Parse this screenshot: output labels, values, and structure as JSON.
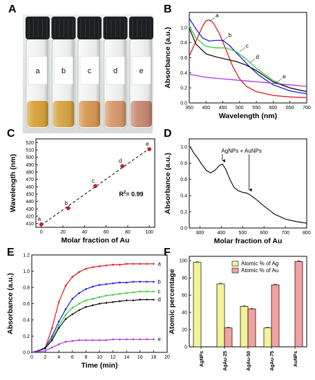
{
  "colors": {
    "red": "#e8141c",
    "blue": "#1a1aeb",
    "green": "#33cc33",
    "black": "#111111",
    "violet": "#b52ee0",
    "ag_bar": "#f4f39a",
    "au_bar": "#f2a0a0"
  },
  "panels": {
    "A": "A",
    "B": "B",
    "C": "C",
    "D": "D",
    "E": "E",
    "F": "F"
  },
  "photo": {
    "vials": [
      {
        "label": "a",
        "liquid": "#d9a43a"
      },
      {
        "label": "b",
        "liquid": "#d7a446"
      },
      {
        "label": "c",
        "liquid": "#d59a52"
      },
      {
        "label": "d",
        "liquid": "#d79a6c"
      },
      {
        "label": "e",
        "liquid": "#c88a74"
      }
    ]
  },
  "chart_data": [
    {
      "panel": "B",
      "type": "line",
      "xlabel": "Wavelength (nm)",
      "ylabel": "Absorbance (a.u.)",
      "xlim": [
        350,
        700
      ],
      "ylim": [
        0,
        1.2
      ],
      "xticks": [
        350,
        400,
        450,
        500,
        550,
        600,
        650,
        700
      ],
      "yticks": [
        0.0,
        0.2,
        0.4,
        0.6,
        0.8,
        1.0
      ],
      "series": [
        {
          "name": "a",
          "color": "#e8141c",
          "x": [
            350,
            370,
            390,
            400,
            410,
            420,
            440,
            460,
            480,
            500,
            520,
            550,
            600,
            650,
            700
          ],
          "y": [
            0.62,
            0.82,
            1.02,
            1.09,
            1.1,
            1.07,
            0.92,
            0.7,
            0.48,
            0.32,
            0.22,
            0.15,
            0.1,
            0.08,
            0.07
          ]
        },
        {
          "name": "b",
          "color": "#1a1aeb",
          "x": [
            350,
            370,
            390,
            410,
            430,
            450,
            470,
            500,
            530,
            560,
            600,
            650,
            700
          ],
          "y": [
            1.12,
            0.98,
            0.86,
            0.82,
            0.83,
            0.83,
            0.76,
            0.62,
            0.48,
            0.36,
            0.24,
            0.16,
            0.12
          ]
        },
        {
          "name": "c",
          "color": "#33cc33",
          "x": [
            350,
            370,
            400,
            430,
            460,
            490,
            520,
            550,
            600,
            650,
            700
          ],
          "y": [
            1.02,
            0.86,
            0.75,
            0.73,
            0.73,
            0.68,
            0.58,
            0.46,
            0.3,
            0.2,
            0.15
          ]
        },
        {
          "name": "d",
          "color": "#111111",
          "x": [
            350,
            370,
            400,
            430,
            460,
            490,
            520,
            550,
            580,
            600,
            650,
            700
          ],
          "y": [
            0.99,
            0.78,
            0.65,
            0.61,
            0.58,
            0.55,
            0.5,
            0.43,
            0.34,
            0.28,
            0.2,
            0.15
          ]
        },
        {
          "name": "e",
          "color": "#b52ee0",
          "x": [
            350,
            400,
            450,
            500,
            550,
            600,
            650,
            700
          ],
          "y": [
            0.38,
            0.34,
            0.32,
            0.3,
            0.28,
            0.26,
            0.24,
            0.22
          ]
        }
      ],
      "annotations": [
        "a",
        "b",
        "c",
        "d",
        "e"
      ]
    },
    {
      "panel": "C",
      "type": "scatter",
      "xlabel": "Molar fraction of Au",
      "ylabel": "Wavelength (nm)",
      "xlim": [
        -5,
        105
      ],
      "ylim": [
        405,
        525
      ],
      "xticks": [
        0,
        20,
        40,
        60,
        80,
        100
      ],
      "yticks": [
        410,
        420,
        430,
        440,
        450,
        460,
        470,
        480,
        490,
        500,
        510,
        520
      ],
      "points": [
        {
          "label": "a",
          "x": 0,
          "y": 409
        },
        {
          "label": "b",
          "x": 25,
          "y": 431
        },
        {
          "label": "c",
          "x": 50,
          "y": 461
        },
        {
          "label": "d",
          "x": 75,
          "y": 488
        },
        {
          "label": "e",
          "x": 100,
          "y": 511
        }
      ],
      "fit": {
        "x": [
          0,
          100
        ],
        "y": [
          408,
          512
        ]
      },
      "r2": "R",
      "r2_sup": "2",
      "r2_val": "= 0.99"
    },
    {
      "panel": "D",
      "type": "line",
      "xlabel": "Molar fraction of Au",
      "ylabel": "Absorbance (a.u.)",
      "xlim": [
        250,
        800
      ],
      "ylim": [
        0,
        1.1
      ],
      "xticks": [
        300,
        400,
        500,
        600,
        700,
        800
      ],
      "yticks": [
        0.0,
        0.2,
        0.4,
        0.6,
        0.8,
        1.0
      ],
      "series": [
        {
          "name": "",
          "color": "#111111",
          "x": [
            255,
            270,
            290,
            310,
            330,
            350,
            370,
            390,
            405,
            420,
            440,
            460,
            480,
            500,
            520,
            540,
            560,
            600,
            650,
            700,
            750,
            800
          ],
          "y": [
            1.0,
            0.93,
            0.86,
            0.78,
            0.71,
            0.68,
            0.71,
            0.77,
            0.79,
            0.73,
            0.6,
            0.5,
            0.46,
            0.44,
            0.43,
            0.4,
            0.36,
            0.27,
            0.17,
            0.11,
            0.08,
            0.06
          ]
        }
      ],
      "annotation": "AgNPs + AuNPs",
      "arrows_x": [
        405,
        530
      ]
    },
    {
      "panel": "E",
      "type": "line",
      "xlabel": "Time (min)",
      "ylabel": "Absorbance (a.u.)",
      "xlim": [
        0,
        20
      ],
      "ylim": [
        0,
        1.2
      ],
      "xticks": [
        0,
        2,
        4,
        6,
        8,
        10,
        12,
        14,
        16,
        18,
        20
      ],
      "yticks": [
        0.0,
        0.2,
        0.4,
        0.6,
        0.8,
        1.0,
        1.2
      ],
      "series": [
        {
          "name": "a",
          "color": "#e8141c",
          "x": [
            0,
            1,
            2,
            3,
            4,
            5,
            6,
            7,
            8,
            9,
            10,
            11,
            12,
            13,
            14,
            15,
            16,
            17,
            18
          ],
          "y": [
            0,
            0.02,
            0.06,
            0.3,
            0.62,
            0.82,
            0.93,
            0.99,
            1.03,
            1.05,
            1.06,
            1.07,
            1.08,
            1.08,
            1.09,
            1.09,
            1.09,
            1.09,
            1.09
          ]
        },
        {
          "name": "b",
          "color": "#1a1aeb",
          "x": [
            0,
            1,
            2,
            3,
            4,
            5,
            6,
            7,
            8,
            9,
            10,
            11,
            12,
            13,
            14,
            15,
            16,
            17,
            18
          ],
          "y": [
            0,
            0.02,
            0.06,
            0.2,
            0.38,
            0.53,
            0.66,
            0.73,
            0.78,
            0.81,
            0.83,
            0.84,
            0.85,
            0.86,
            0.86,
            0.87,
            0.87,
            0.87,
            0.87
          ]
        },
        {
          "name": "c",
          "color": "#33cc33",
          "x": [
            0,
            1,
            2,
            3,
            4,
            5,
            6,
            7,
            8,
            9,
            10,
            11,
            12,
            13,
            14,
            15,
            16,
            17,
            18
          ],
          "y": [
            0,
            0.02,
            0.05,
            0.17,
            0.33,
            0.46,
            0.55,
            0.6,
            0.64,
            0.66,
            0.68,
            0.7,
            0.71,
            0.72,
            0.73,
            0.74,
            0.75,
            0.75,
            0.75
          ]
        },
        {
          "name": "d",
          "color": "#111111",
          "x": [
            0,
            1,
            2,
            3,
            4,
            5,
            6,
            7,
            8,
            9,
            10,
            11,
            12,
            13,
            14,
            15,
            16,
            17,
            18
          ],
          "y": [
            0,
            0.02,
            0.05,
            0.15,
            0.3,
            0.41,
            0.47,
            0.52,
            0.56,
            0.58,
            0.6,
            0.61,
            0.62,
            0.63,
            0.64,
            0.64,
            0.65,
            0.65,
            0.65
          ]
        },
        {
          "name": "e",
          "color": "#b52ee0",
          "x": [
            0,
            1,
            2,
            3,
            4,
            5,
            6,
            7,
            8,
            9,
            10,
            11,
            12,
            13,
            14,
            15,
            16,
            17,
            18
          ],
          "y": [
            0,
            0.01,
            0.02,
            0.06,
            0.1,
            0.13,
            0.14,
            0.15,
            0.15,
            0.15,
            0.15,
            0.15,
            0.16,
            0.16,
            0.16,
            0.16,
            0.16,
            0.16,
            0.16
          ]
        }
      ]
    },
    {
      "panel": "F",
      "type": "bar",
      "xlabel": "",
      "ylabel": "Atomic percentage",
      "ylim": [
        0,
        105
      ],
      "yticks": [
        0,
        20,
        40,
        60,
        80,
        100
      ],
      "categories": [
        "AgNPs",
        "AgAu-25",
        "AgAu-50",
        "AgAu-75",
        "AuNPs"
      ],
      "series": [
        {
          "name": "Atomic % of Ag",
          "color": "#f4f39a",
          "values": [
            98,
            73,
            47,
            22,
            0
          ]
        },
        {
          "name": "Atomic % of Au",
          "color": "#f2a0a0",
          "values": [
            0,
            22,
            44,
            72,
            99
          ]
        }
      ],
      "legend": "top-right"
    }
  ]
}
